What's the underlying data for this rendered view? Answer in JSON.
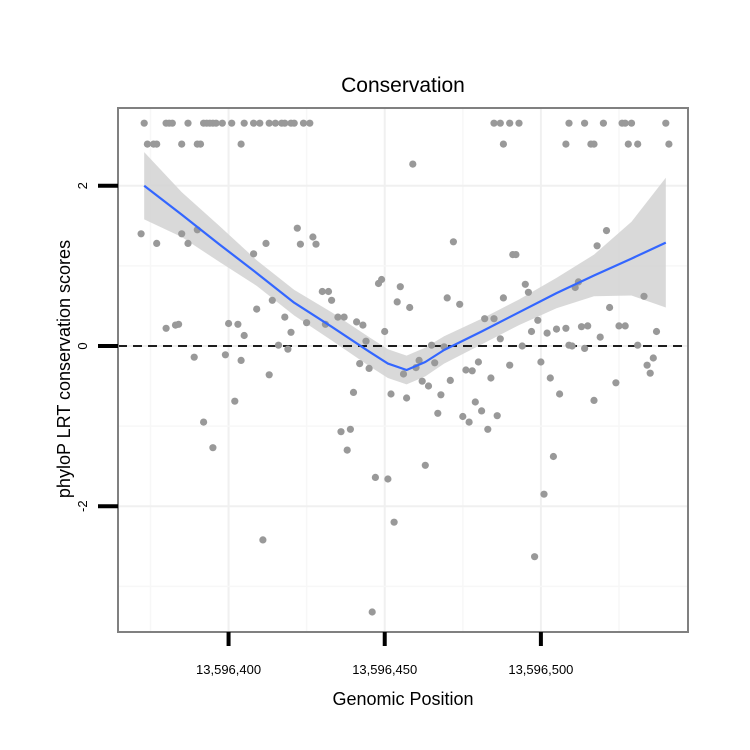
{
  "chart_data": {
    "type": "scatter",
    "title": "Conservation",
    "xlabel": "Genomic Position",
    "ylabel": "phyloP LRT conservation scores",
    "xlim": [
      13596364.6,
      13596547.1
    ],
    "ylim": [
      -3.57,
      2.97
    ],
    "x_ticks": [
      {
        "value": 13596400,
        "label": "13,596,400"
      },
      {
        "value": 13596450,
        "label": "13,596,450"
      },
      {
        "value": 13596500,
        "label": "13,596,500"
      }
    ],
    "y_ticks": [
      {
        "value": -2,
        "label": "-2"
      },
      {
        "value": 0,
        "label": "0"
      },
      {
        "value": 2,
        "label": "2"
      }
    ],
    "grid": true,
    "reference_line": {
      "y": 0,
      "style": "dashed"
    },
    "points": [
      [
        13596373,
        2.78
      ],
      [
        13596374,
        2.52
      ],
      [
        13596376,
        2.52
      ],
      [
        13596377,
        2.52
      ],
      [
        13596380,
        2.78
      ],
      [
        13596381,
        2.78
      ],
      [
        13596382,
        2.78
      ],
      [
        13596385,
        2.52
      ],
      [
        13596387,
        2.78
      ],
      [
        13596390,
        2.52
      ],
      [
        13596391,
        2.52
      ],
      [
        13596392,
        2.78
      ],
      [
        13596393,
        2.78
      ],
      [
        13596394,
        2.78
      ],
      [
        13596395,
        2.78
      ],
      [
        13596396,
        2.78
      ],
      [
        13596398,
        2.78
      ],
      [
        13596401,
        2.78
      ],
      [
        13596404,
        2.52
      ],
      [
        13596405,
        2.78
      ],
      [
        13596408,
        2.78
      ],
      [
        13596410,
        2.78
      ],
      [
        13596413,
        2.78
      ],
      [
        13596415,
        2.78
      ],
      [
        13596417,
        2.78
      ],
      [
        13596418,
        2.78
      ],
      [
        13596420,
        2.78
      ],
      [
        13596421,
        2.78
      ],
      [
        13596424,
        2.78
      ],
      [
        13596426,
        2.78
      ],
      [
        13596485,
        2.78
      ],
      [
        13596487,
        2.78
      ],
      [
        13596488,
        2.52
      ],
      [
        13596490,
        2.78
      ],
      [
        13596493,
        2.78
      ],
      [
        13596508,
        2.52
      ],
      [
        13596509,
        2.78
      ],
      [
        13596514,
        2.78
      ],
      [
        13596516,
        2.52
      ],
      [
        13596517,
        2.52
      ],
      [
        13596520,
        2.78
      ],
      [
        13596526,
        2.78
      ],
      [
        13596527,
        2.78
      ],
      [
        13596528,
        2.52
      ],
      [
        13596529,
        2.78
      ],
      [
        13596531,
        2.52
      ],
      [
        13596540,
        2.78
      ],
      [
        13596541,
        2.52
      ],
      [
        13596372,
        1.4
      ],
      [
        13596377,
        1.28
      ],
      [
        13596380,
        0.22
      ],
      [
        13596383,
        0.26
      ],
      [
        13596384,
        0.27
      ],
      [
        13596385,
        1.4
      ],
      [
        13596387,
        1.28
      ],
      [
        13596390,
        1.45
      ],
      [
        13596389,
        -0.14
      ],
      [
        13596392,
        -0.95
      ],
      [
        13596395,
        -1.27
      ],
      [
        13596399,
        -0.11
      ],
      [
        13596400,
        0.28
      ],
      [
        13596402,
        -0.69
      ],
      [
        13596403,
        0.27
      ],
      [
        13596404,
        -0.18
      ],
      [
        13596405,
        0.13
      ],
      [
        13596408,
        1.15
      ],
      [
        13596409,
        0.46
      ],
      [
        13596411,
        -2.42
      ],
      [
        13596412,
        1.28
      ],
      [
        13596413,
        -0.36
      ],
      [
        13596414,
        0.57
      ],
      [
        13596416,
        0.01
      ],
      [
        13596418,
        0.36
      ],
      [
        13596419,
        -0.04
      ],
      [
        13596420,
        0.17
      ],
      [
        13596422,
        1.47
      ],
      [
        13596423,
        1.27
      ],
      [
        13596425,
        0.29
      ],
      [
        13596427,
        1.36
      ],
      [
        13596428,
        1.27
      ],
      [
        13596430,
        0.68
      ],
      [
        13596431,
        0.27
      ],
      [
        13596432,
        0.68
      ],
      [
        13596433,
        0.57
      ],
      [
        13596435,
        0.36
      ],
      [
        13596436,
        -1.07
      ],
      [
        13596437,
        0.36
      ],
      [
        13596438,
        -1.3
      ],
      [
        13596439,
        -1.04
      ],
      [
        13596440,
        -0.58
      ],
      [
        13596441,
        0.3
      ],
      [
        13596442,
        -0.22
      ],
      [
        13596443,
        0.26
      ],
      [
        13596444,
        0.06
      ],
      [
        13596445,
        -0.28
      ],
      [
        13596446,
        -3.32
      ],
      [
        13596447,
        -1.64
      ],
      [
        13596448,
        0.78
      ],
      [
        13596449,
        0.83
      ],
      [
        13596450,
        0.18
      ],
      [
        13596451,
        -1.66
      ],
      [
        13596452,
        -0.6
      ],
      [
        13596453,
        -2.2
      ],
      [
        13596454,
        0.55
      ],
      [
        13596455,
        0.74
      ],
      [
        13596456,
        -0.35
      ],
      [
        13596457,
        -0.65
      ],
      [
        13596458,
        0.48
      ],
      [
        13596459,
        2.27
      ],
      [
        13596460,
        -0.27
      ],
      [
        13596461,
        -0.18
      ],
      [
        13596462,
        -0.44
      ],
      [
        13596463,
        -1.49
      ],
      [
        13596464,
        -0.5
      ],
      [
        13596465,
        0.01
      ],
      [
        13596466,
        -0.21
      ],
      [
        13596467,
        -0.84
      ],
      [
        13596468,
        -0.61
      ],
      [
        13596469,
        -0.01
      ],
      [
        13596470,
        0.6
      ],
      [
        13596471,
        -0.43
      ],
      [
        13596472,
        1.3
      ],
      [
        13596474,
        0.52
      ],
      [
        13596475,
        -0.88
      ],
      [
        13596476,
        -0.3
      ],
      [
        13596477,
        -0.95
      ],
      [
        13596478,
        -0.31
      ],
      [
        13596479,
        -0.7
      ],
      [
        13596480,
        -0.2
      ],
      [
        13596481,
        -0.81
      ],
      [
        13596482,
        0.34
      ],
      [
        13596483,
        -1.04
      ],
      [
        13596484,
        -0.4
      ],
      [
        13596485,
        0.34
      ],
      [
        13596486,
        -0.87
      ],
      [
        13596487,
        0.09
      ],
      [
        13596488,
        0.6
      ],
      [
        13596490,
        -0.24
      ],
      [
        13596491,
        1.14
      ],
      [
        13596492,
        1.14
      ],
      [
        13596494,
        0.0
      ],
      [
        13596495,
        0.77
      ],
      [
        13596496,
        0.67
      ],
      [
        13596497,
        0.18
      ],
      [
        13596498,
        -2.63
      ],
      [
        13596499,
        0.32
      ],
      [
        13596500,
        -0.2
      ],
      [
        13596501,
        -1.85
      ],
      [
        13596502,
        0.16
      ],
      [
        13596503,
        -0.4
      ],
      [
        13596504,
        -1.38
      ],
      [
        13596505,
        0.21
      ],
      [
        13596506,
        -0.6
      ],
      [
        13596508,
        0.22
      ],
      [
        13596509,
        0.01
      ],
      [
        13596510,
        0.0
      ],
      [
        13596511,
        0.73
      ],
      [
        13596512,
        0.8
      ],
      [
        13596513,
        0.24
      ],
      [
        13596514,
        -0.03
      ],
      [
        13596515,
        0.25
      ],
      [
        13596517,
        -0.68
      ],
      [
        13596518,
        1.25
      ],
      [
        13596519,
        0.11
      ],
      [
        13596521,
        1.44
      ],
      [
        13596522,
        0.48
      ],
      [
        13596524,
        -0.46
      ],
      [
        13596525,
        0.25
      ],
      [
        13596527,
        0.25
      ],
      [
        13596531,
        0.01
      ],
      [
        13596533,
        0.62
      ],
      [
        13596534,
        -0.24
      ],
      [
        13596535,
        -0.34
      ],
      [
        13596536,
        -0.15
      ],
      [
        13596537,
        0.18
      ]
    ],
    "smooth_fit": {
      "method": "loess",
      "line_color": "#3366FF",
      "band_color": "#d2d2d2",
      "x": [
        13596373,
        13596385,
        13596397,
        13596409,
        13596421,
        13596433,
        13596445,
        13596451,
        13596457,
        13596463,
        13596469,
        13596481,
        13596493,
        13596505,
        13596517,
        13596529,
        13596540
      ],
      "fit": [
        2.0,
        1.64,
        1.27,
        0.91,
        0.54,
        0.24,
        -0.07,
        -0.22,
        -0.3,
        -0.2,
        -0.05,
        0.18,
        0.42,
        0.66,
        0.88,
        1.09,
        1.29
      ],
      "lower": [
        1.58,
        1.36,
        1.05,
        0.75,
        0.38,
        0.07,
        -0.25,
        -0.4,
        -0.48,
        -0.38,
        -0.22,
        0.02,
        0.26,
        0.47,
        0.62,
        0.63,
        0.48
      ],
      "upper": [
        2.42,
        1.92,
        1.5,
        1.07,
        0.7,
        0.42,
        0.11,
        -0.04,
        -0.12,
        -0.02,
        0.12,
        0.34,
        0.58,
        0.85,
        1.14,
        1.55,
        2.1
      ]
    },
    "colors": {
      "points": "#999999",
      "frame": "#808080",
      "grid_major": "#f0f0f0",
      "grid_minor": "#f7f7f7"
    }
  }
}
